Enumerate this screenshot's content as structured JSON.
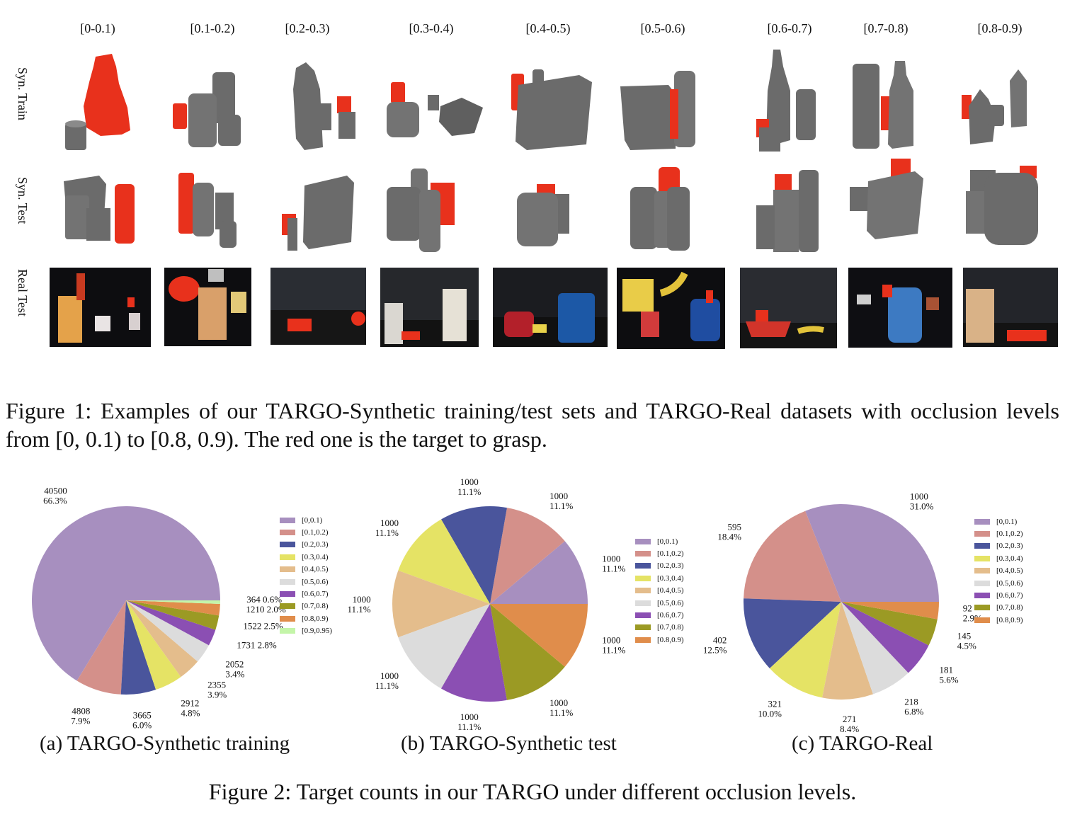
{
  "figure1": {
    "column_labels": [
      "[0-0.1)",
      "[0.1-0.2)",
      "[0.2-0.3)",
      "[0.3-0.4)",
      "[0.4-0.5)",
      "[0.5-0.6)",
      "[0.6-0.7)",
      "[0.7-0.8)",
      "[0.8-0.9)"
    ],
    "row_labels": [
      "Syn. Train",
      "Syn. Test",
      "Real  Test"
    ],
    "caption": "Figure 1: Examples of our TARGO-Synthetic training/test sets and TARGO-Real datasets with occlusion levels from [0, 0.1) to [0.8, 0.9). The red one is the target to grasp.",
    "colors": {
      "target": "#e8311c",
      "object": "#6b6b6b",
      "background": "#0d0d10"
    }
  },
  "figure2": {
    "caption": "Figure 2: Target counts in our TARGO under different occlusion levels.",
    "subcaptions": [
      "(a) TARGO-Synthetic training",
      "(b) TARGO-Synthetic test",
      "(c) TARGO-Real"
    ]
  },
  "chart_data": [
    {
      "type": "pie",
      "title": "(a) TARGO-Synthetic training",
      "categories": [
        "[0,0.1)",
        "[0.1,0.2)",
        "[0.2,0.3)",
        "[0.3,0.4)",
        "[0.4,0.5)",
        "[0.5,0.6)",
        "[0.6,0.7)",
        "[0.7,0.8)",
        "[0.8,0.9)",
        "[0.9,0.95)"
      ],
      "values": [
        40500,
        4808,
        3665,
        2912,
        2355,
        2052,
        1731,
        1522,
        1210,
        364
      ],
      "percent_labels": [
        "66.3%",
        "7.9%",
        "6.0%",
        "4.8%",
        "3.9%",
        "3.4%",
        "2.8%",
        "2.5%",
        "2.0%",
        "0.6%"
      ],
      "colors": [
        "#a78fbf",
        "#d4908a",
        "#4a559c",
        "#e5e365",
        "#e4bd8c",
        "#dcdcdc",
        "#8b4fb3",
        "#9b9a24",
        "#e08d4b",
        "#c4f5a9"
      ],
      "legend_position": "right"
    },
    {
      "type": "pie",
      "title": "(b) TARGO-Synthetic test",
      "categories": [
        "[0,0.1)",
        "[0.1,0.2)",
        "[0.2,0.3)",
        "[0.3,0.4)",
        "[0.4,0.5)",
        "[0.5,0.6)",
        "[0.6,0.7)",
        "[0.7,0.8)",
        "[0.8,0.9)"
      ],
      "values": [
        1000,
        1000,
        1000,
        1000,
        1000,
        1000,
        1000,
        1000,
        1000
      ],
      "percent_labels": [
        "11.1%",
        "11.1%",
        "11.1%",
        "11.1%",
        "11.1%",
        "11.1%",
        "11.1%",
        "11.1%",
        "11.1%"
      ],
      "colors": [
        "#a78fbf",
        "#d4908a",
        "#4a559c",
        "#e5e365",
        "#e4bd8c",
        "#dcdcdc",
        "#8b4fb3",
        "#9b9a24",
        "#e08d4b"
      ],
      "legend_position": "right"
    },
    {
      "type": "pie",
      "title": "(c) TARGO-Real",
      "categories": [
        "[0,0.1)",
        "[0.1,0.2)",
        "[0.2,0.3)",
        "[0.3,0.4)",
        "[0.4,0.5)",
        "[0.5,0.6)",
        "[0.6,0.7)",
        "[0.7,0.8)",
        "[0.8,0.9)"
      ],
      "values": [
        1000,
        595,
        402,
        321,
        271,
        218,
        181,
        145,
        92
      ],
      "percent_labels": [
        "31.0%",
        "18.4%",
        "12.5%",
        "10.0%",
        "8.4%",
        "6.8%",
        "5.6%",
        "4.5%",
        "2.9%"
      ],
      "colors": [
        "#a78fbf",
        "#d4908a",
        "#4a559c",
        "#e5e365",
        "#e4bd8c",
        "#dcdcdc",
        "#8b4fb3",
        "#9b9a24",
        "#e08d4b"
      ],
      "legend_position": "right"
    }
  ]
}
